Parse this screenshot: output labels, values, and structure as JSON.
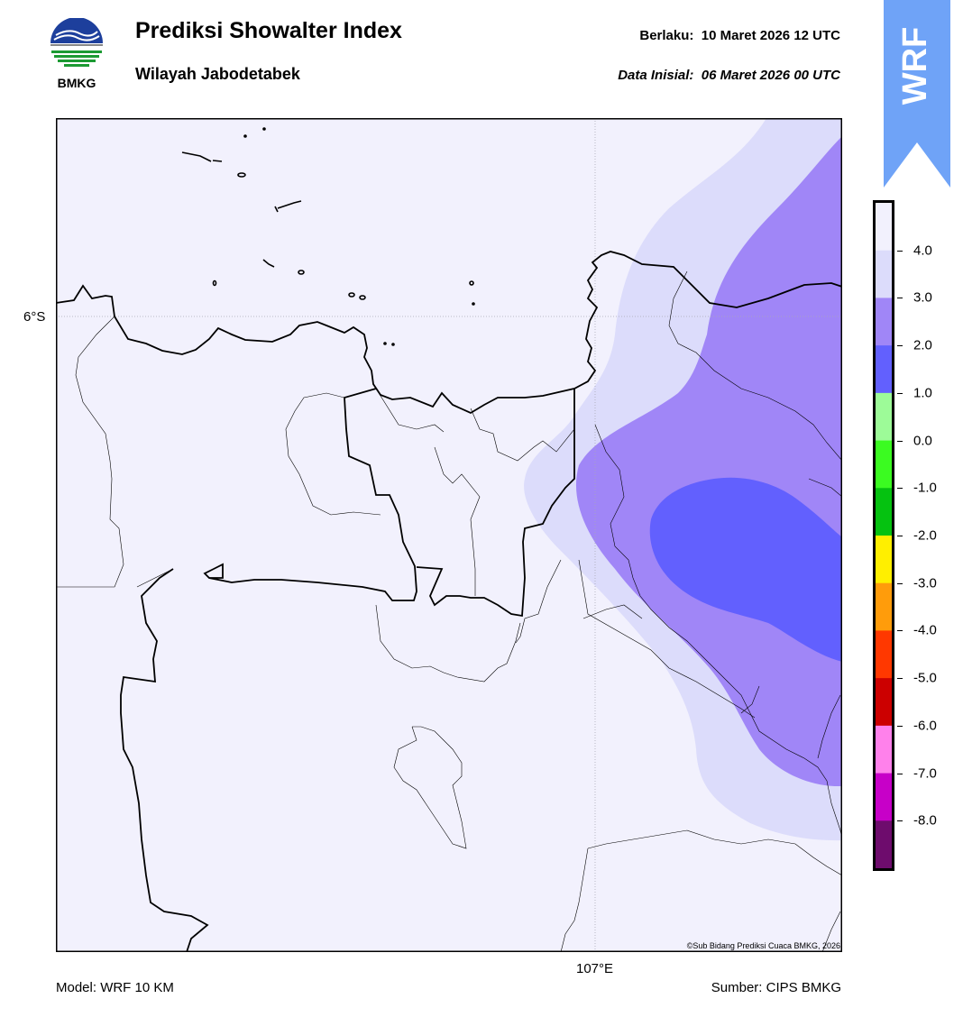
{
  "header": {
    "title": "Prediksi Showalter Index",
    "subtitle": "Wilayah Jabodetabek",
    "valid_label": "Berlaku:",
    "valid_value": "10 Maret 2026 12 UTC",
    "init_label": "Data Inisial:",
    "init_value": "06 Maret 2026 00 UTC"
  },
  "logo": {
    "text": "BMKG",
    "icon": "bmkg-logo"
  },
  "badge": {
    "text": "WRF",
    "color": "#6fa3f7",
    "icon": "arrow-up-icon"
  },
  "map": {
    "background_color": "#f2f1fd",
    "lat_label": "6°S",
    "lon_label": "107°E",
    "copyright": "©Sub Bidang Prediksi Cuaca BMKG, 2026",
    "contour_colors": {
      "above_4": "#f2f1fd",
      "3_to_4": "#dcdcfb",
      "2_to_3": "#a086f7",
      "1_to_2": "#6260fe"
    }
  },
  "colorbar": {
    "ticks": [
      "4.0",
      "3.0",
      "2.0",
      "1.0",
      "0.0",
      "-1.0",
      "-2.0",
      "-3.0",
      "-4.0",
      "-5.0",
      "-6.0",
      "-7.0",
      "-8.0"
    ],
    "colors": [
      "#f2f1fd",
      "#dcdcfb",
      "#a086f7",
      "#6260fe",
      "#9dfb98",
      "#3bfb21",
      "#05c210",
      "#ffef00",
      "#ff9c0b",
      "#ff3800",
      "#cc0000",
      "#ff81eb",
      "#c700c8",
      "#6e0c6d"
    ]
  },
  "footer": {
    "model": "Model: WRF 10 KM",
    "source": "Sumber: CIPS BMKG"
  }
}
